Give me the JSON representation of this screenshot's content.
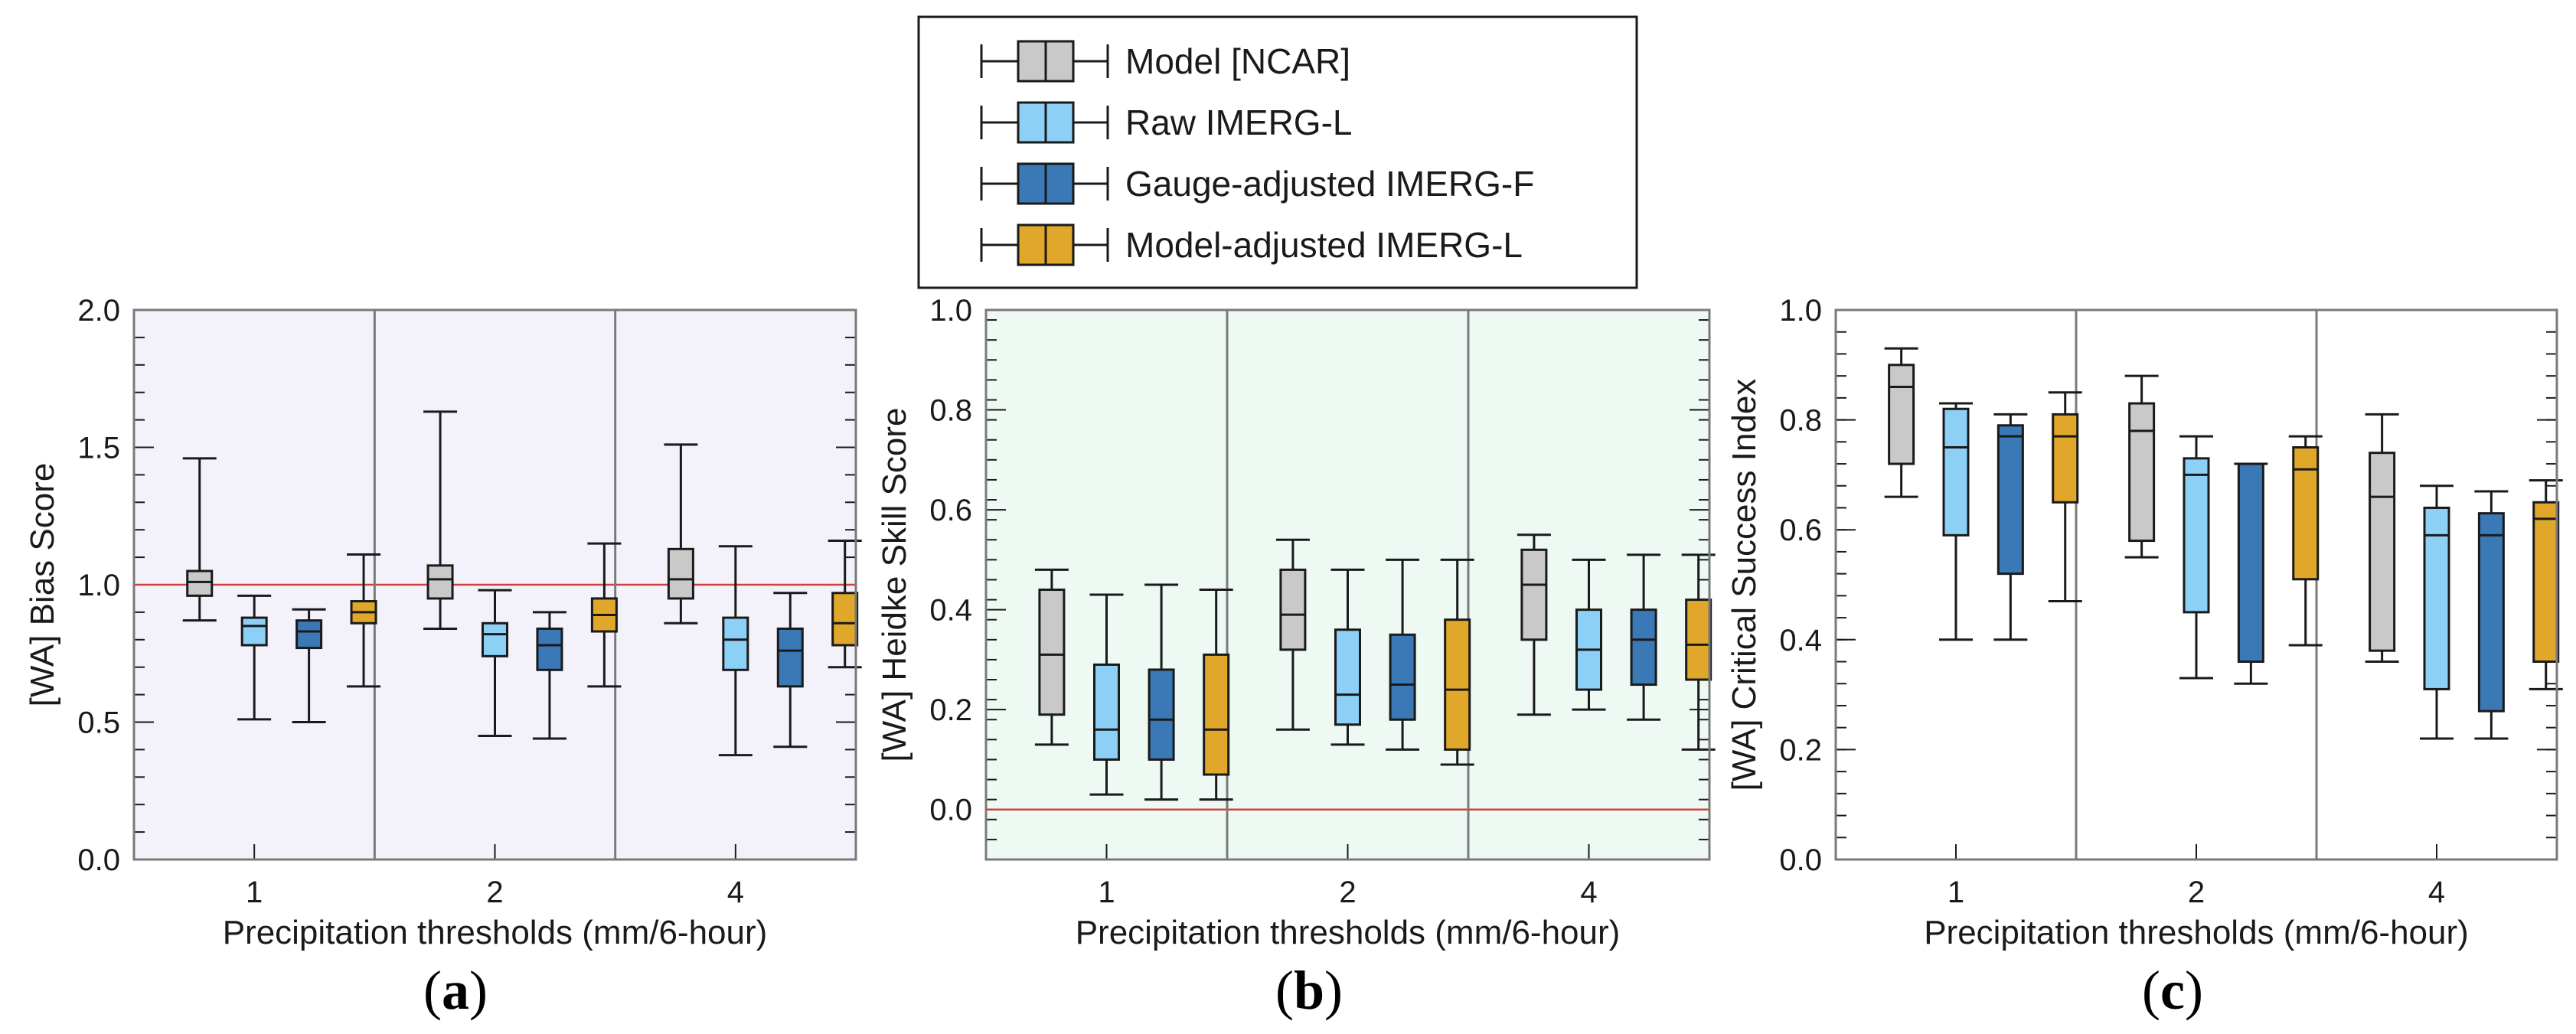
{
  "figure": {
    "legend": [
      {
        "label": "Model [NCAR]",
        "color": "#c9c9c9"
      },
      {
        "label": "Raw IMERG-L",
        "color": "#8dd0f5"
      },
      {
        "label": "Gauge-adjusted IMERG-F",
        "color": "#3a78b6"
      },
      {
        "label": "Model-adjusted IMERG-L",
        "color": "#e0a72a"
      }
    ],
    "panel_letters": [
      {
        "open": "(",
        "letter": "a",
        "close": ")"
      },
      {
        "open": "(",
        "letter": "b",
        "close": ")"
      },
      {
        "open": "(",
        "letter": "c",
        "close": ")"
      }
    ]
  },
  "chart_data": [
    {
      "type": "box",
      "panel": "a",
      "ylabel": "[WA]   Bias Score",
      "xlabel": "Precipitation thresholds (mm/6-hour)",
      "categories": [
        "1",
        "2",
        "4"
      ],
      "ylim": [
        0.0,
        2.0
      ],
      "yticks": [
        0.0,
        0.5,
        1.0,
        1.5,
        2.0
      ],
      "ytick_labels": [
        "0.0",
        "0.5",
        "1.0",
        "1.5",
        "2.0"
      ],
      "reference_line": 1.0,
      "background": "#f3f2fb",
      "series": [
        {
          "name": "Model [NCAR]",
          "boxes": [
            [
              0.87,
              0.96,
              1.01,
              1.05,
              1.46
            ],
            [
              0.84,
              0.95,
              1.02,
              1.07,
              1.63
            ],
            [
              0.86,
              0.95,
              1.02,
              1.13,
              1.51
            ]
          ]
        },
        {
          "name": "Raw IMERG-L",
          "boxes": [
            [
              0.51,
              0.78,
              0.85,
              0.88,
              0.96
            ],
            [
              0.45,
              0.74,
              0.82,
              0.86,
              0.98
            ],
            [
              0.38,
              0.69,
              0.8,
              0.88,
              1.14
            ]
          ]
        },
        {
          "name": "Gauge-adjusted IMERG-F",
          "boxes": [
            [
              0.5,
              0.77,
              0.83,
              0.87,
              0.91
            ],
            [
              0.44,
              0.69,
              0.78,
              0.84,
              0.9
            ],
            [
              0.41,
              0.63,
              0.76,
              0.84,
              0.97
            ]
          ]
        },
        {
          "name": "Model-adjusted IMERG-L",
          "boxes": [
            [
              0.63,
              0.86,
              0.9,
              0.94,
              1.11
            ],
            [
              0.63,
              0.83,
              0.89,
              0.95,
              1.15
            ],
            [
              0.7,
              0.78,
              0.86,
              0.97,
              1.16
            ]
          ]
        }
      ]
    },
    {
      "type": "box",
      "panel": "b",
      "ylabel": "[WA]   Heidke Skill Score",
      "xlabel": "Precipitation thresholds (mm/6-hour)",
      "categories": [
        "1",
        "2",
        "4"
      ],
      "ylim": [
        -0.1,
        1.0
      ],
      "yticks": [
        0.0,
        0.2,
        0.4,
        0.6,
        0.8,
        1.0
      ],
      "ytick_labels": [
        "0.0",
        "0.2",
        "0.4",
        "0.6",
        "0.8",
        "1.0"
      ],
      "reference_line": 0.0,
      "background": "#eef9f3",
      "series": [
        {
          "name": "Model [NCAR]",
          "boxes": [
            [
              0.13,
              0.19,
              0.31,
              0.44,
              0.48
            ],
            [
              0.16,
              0.32,
              0.39,
              0.48,
              0.54
            ],
            [
              0.19,
              0.34,
              0.45,
              0.52,
              0.55
            ]
          ]
        },
        {
          "name": "Raw IMERG-L",
          "boxes": [
            [
              0.03,
              0.1,
              0.16,
              0.29,
              0.43
            ],
            [
              0.13,
              0.17,
              0.23,
              0.36,
              0.48
            ],
            [
              0.2,
              0.24,
              0.32,
              0.4,
              0.5
            ]
          ]
        },
        {
          "name": "Gauge-adjusted IMERG-F",
          "boxes": [
            [
              0.02,
              0.1,
              0.18,
              0.28,
              0.45
            ],
            [
              0.12,
              0.18,
              0.25,
              0.35,
              0.5
            ],
            [
              0.18,
              0.25,
              0.34,
              0.4,
              0.51
            ]
          ]
        },
        {
          "name": "Model-adjusted IMERG-L",
          "boxes": [
            [
              0.02,
              0.07,
              0.16,
              0.31,
              0.44
            ],
            [
              0.09,
              0.12,
              0.24,
              0.38,
              0.5
            ],
            [
              0.12,
              0.26,
              0.33,
              0.42,
              0.51
            ]
          ]
        }
      ]
    },
    {
      "type": "box",
      "panel": "c",
      "ylabel": "[WA]   Critical Success Index",
      "xlabel": "Precipitation thresholds (mm/6-hour)",
      "categories": [
        "1",
        "2",
        "4"
      ],
      "ylim": [
        0.0,
        1.0
      ],
      "yticks": [
        0.0,
        0.2,
        0.4,
        0.6,
        0.8,
        1.0
      ],
      "ytick_labels": [
        "0.0",
        "0.2",
        "0.4",
        "0.6",
        "0.8",
        "1.0"
      ],
      "reference_line": null,
      "background": "#ffffff",
      "series": [
        {
          "name": "Model [NCAR]",
          "boxes": [
            [
              0.66,
              0.72,
              0.86,
              0.9,
              0.93
            ],
            [
              0.55,
              0.58,
              0.78,
              0.83,
              0.88
            ],
            [
              0.36,
              0.38,
              0.66,
              0.74,
              0.81
            ]
          ]
        },
        {
          "name": "Raw IMERG-L",
          "boxes": [
            [
              0.4,
              0.59,
              0.75,
              0.82,
              0.83
            ],
            [
              0.33,
              0.45,
              0.7,
              0.73,
              0.77
            ],
            [
              0.22,
              0.31,
              0.59,
              0.64,
              0.68
            ]
          ]
        },
        {
          "name": "Gauge-adjusted IMERG-F",
          "boxes": [
            [
              0.4,
              0.52,
              0.77,
              0.79,
              0.81
            ],
            [
              0.32,
              0.36,
              0.72,
              0.72,
              0.72
            ],
            [
              0.22,
              0.27,
              0.59,
              0.63,
              0.67
            ]
          ]
        },
        {
          "name": "Model-adjusted IMERG-L",
          "boxes": [
            [
              0.47,
              0.65,
              0.77,
              0.81,
              0.85
            ],
            [
              0.39,
              0.51,
              0.71,
              0.75,
              0.77
            ],
            [
              0.31,
              0.36,
              0.62,
              0.65,
              0.69
            ]
          ]
        }
      ]
    }
  ]
}
